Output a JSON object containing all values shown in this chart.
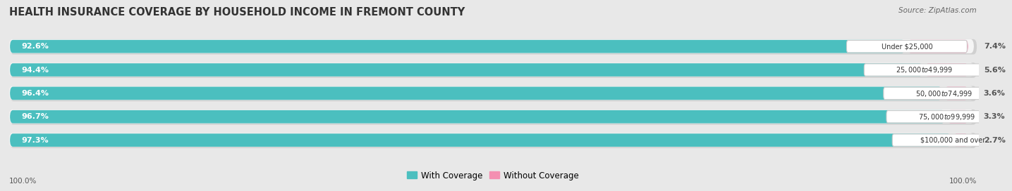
{
  "title": "HEALTH INSURANCE COVERAGE BY HOUSEHOLD INCOME IN FREMONT COUNTY",
  "source": "Source: ZipAtlas.com",
  "categories": [
    "Under $25,000",
    "$25,000 to $49,999",
    "$50,000 to $74,999",
    "$75,000 to $99,999",
    "$100,000 and over"
  ],
  "with_coverage": [
    92.6,
    94.4,
    96.4,
    96.7,
    97.3
  ],
  "without_coverage": [
    7.4,
    5.6,
    3.6,
    3.3,
    2.7
  ],
  "color_with": "#4bbfbf",
  "color_without": "#f48fb1",
  "background_color": "#e8e8e8",
  "bar_bg_color": "#f5f5f5",
  "bar_bg_shadow": "#d0d0d0",
  "legend_label_with": "With Coverage",
  "legend_label_without": "Without Coverage",
  "left_label_color": "#ffffff",
  "right_label_color": "#555555",
  "footer_label": "100.0%",
  "title_fontsize": 10.5,
  "bar_fontsize": 8,
  "category_fontsize": 7,
  "legend_fontsize": 8.5,
  "footer_fontsize": 7.5,
  "source_fontsize": 7.5
}
